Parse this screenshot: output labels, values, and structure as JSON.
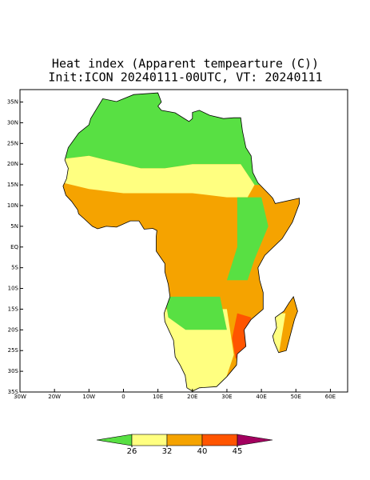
{
  "map": {
    "title": "Heat index (Apparent tempearture (C))",
    "subtitle": "Init:ICON 20240111-00UTC, VT: 20240111",
    "xlim": [
      -30,
      65
    ],
    "ylim": [
      -35,
      38
    ],
    "xticks": [
      {
        "value": -30,
        "label": "30W"
      },
      {
        "value": -20,
        "label": "20W"
      },
      {
        "value": -10,
        "label": "10W"
      },
      0,
      {
        "value": 10,
        "label": "10E"
      },
      {
        "value": 20,
        "label": "20E"
      },
      {
        "value": 30,
        "label": "30E"
      },
      {
        "value": 40,
        "label": "40E"
      },
      {
        "value": 50,
        "label": "50E"
      },
      {
        "value": 60,
        "label": "60E"
      }
    ],
    "yticks": [
      {
        "value": 35,
        "label": "35N"
      },
      {
        "value": 30,
        "label": "30N"
      },
      {
        "value": 25,
        "label": "25N"
      },
      {
        "value": 20,
        "label": "20N"
      },
      {
        "value": 15,
        "label": "15N"
      },
      {
        "value": 10,
        "label": "10N"
      },
      {
        "value": 5,
        "label": "5N"
      },
      {
        "value": 0,
        "label": "EQ"
      },
      {
        "value": -5,
        "label": "5S"
      },
      {
        "value": -10,
        "label": "10S"
      },
      {
        "value": -15,
        "label": "15S"
      },
      {
        "value": -20,
        "label": "20S"
      },
      {
        "value": -25,
        "label": "25S"
      },
      {
        "value": -30,
        "label": "30S"
      },
      {
        "value": -35,
        "label": "35S"
      }
    ],
    "colorbar": {
      "ticks": [
        26,
        32,
        40,
        45
      ],
      "colors": [
        "#58e043",
        "#ffff80",
        "#f5a300",
        "#ff5500",
        "#a3005f"
      ]
    }
  }
}
